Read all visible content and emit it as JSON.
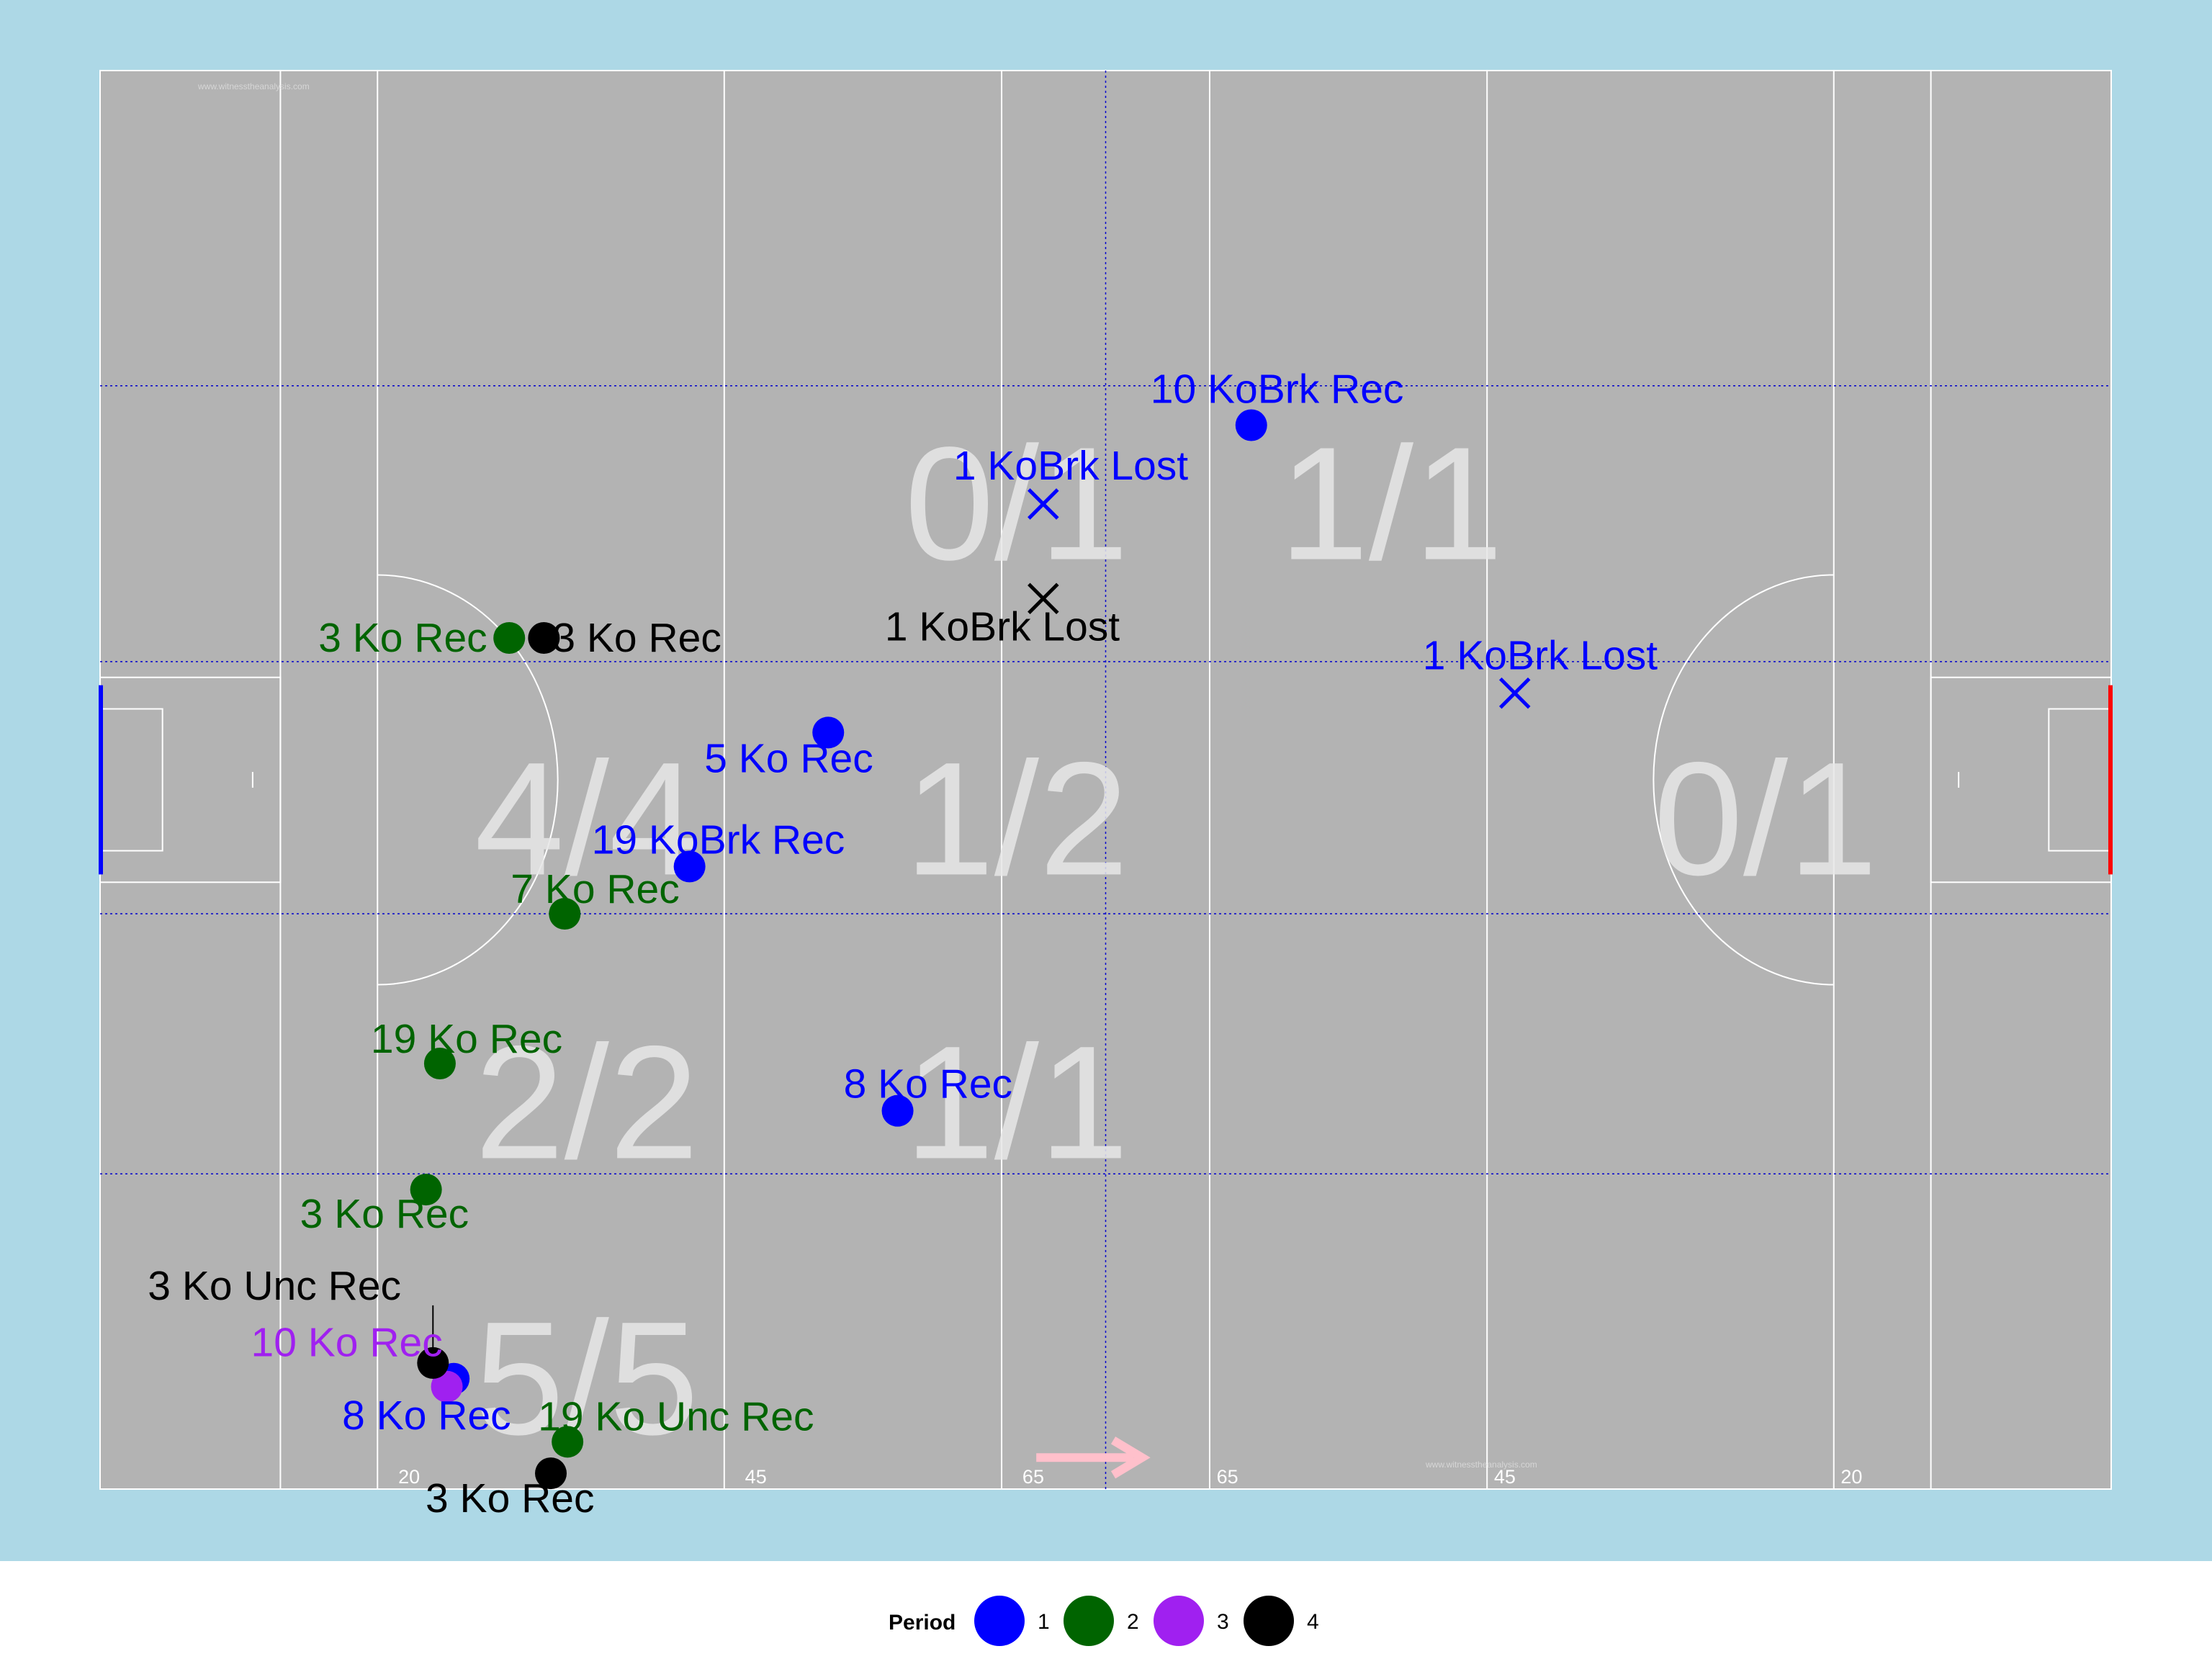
{
  "chart_data": {
    "type": "scatter",
    "title": "",
    "xlabel": "",
    "ylabel": "",
    "xlim": [
      0,
      145
    ],
    "ylim": [
      0,
      90
    ],
    "grid": false,
    "legend": {
      "title": "Period",
      "placement": "bottom",
      "entries": [
        {
          "label": "1",
          "color": "#0000ff"
        },
        {
          "label": "2",
          "color": "#006400"
        },
        {
          "label": "3",
          "color": "#a020f0"
        },
        {
          "label": "4",
          "color": "#000000"
        }
      ]
    },
    "pitch": {
      "background": "#add8e6",
      "field_color": "#b3b3b3",
      "line_color": "#ffffff",
      "grid_color": "#0000cd",
      "left_goal_color": "#0000ff",
      "right_goal_color": "#ff0000",
      "arrow_color": "#ffc0cb",
      "yard_labels": [
        {
          "x": 21.5,
          "text": "20"
        },
        {
          "x": 46.5,
          "text": "45"
        },
        {
          "x": 66.5,
          "text": "65"
        },
        {
          "x": 80.5,
          "text": "65"
        },
        {
          "x": 100.5,
          "text": "45"
        },
        {
          "x": 125.5,
          "text": "20"
        }
      ],
      "watermark": "www.witnesstheanalysis.com"
    },
    "zones": [
      {
        "text": "0/1",
        "x": 58,
        "y": 59
      },
      {
        "text": "1/1",
        "x": 85,
        "y": 59
      },
      {
        "text": "4/4",
        "x": 27,
        "y": 39
      },
      {
        "text": "1/2",
        "x": 58,
        "y": 39
      },
      {
        "text": "0/1",
        "x": 112,
        "y": 39
      },
      {
        "text": "2/2",
        "x": 27,
        "y": 21
      },
      {
        "text": "1/1",
        "x": 58,
        "y": 21
      },
      {
        "text": "5/5",
        "x": 27,
        "y": 3.5
      }
    ],
    "series": [
      {
        "name": "1",
        "color": "#0000ff",
        "points": [
          {
            "x": 83,
            "y": 67.5,
            "marker": "dot",
            "label": "10 KoBrk Rec"
          },
          {
            "x": 68,
            "y": 62.5,
            "marker": "cross",
            "label": "1 KoBrk Lost"
          },
          {
            "x": 102,
            "y": 50.5,
            "marker": "cross",
            "label": "1 KoBrk Lost"
          },
          {
            "x": 52.5,
            "y": 48,
            "marker": "dot",
            "label": "5 Ko Rec"
          },
          {
            "x": 42.5,
            "y": 39.5,
            "marker": "dot",
            "label": "19 KoBrk Rec"
          },
          {
            "x": 57.5,
            "y": 24,
            "marker": "dot",
            "label": "8 Ko Rec"
          },
          {
            "x": 25.5,
            "y": 7,
            "marker": "dot",
            "label": "8 Ko Rec"
          }
        ]
      },
      {
        "name": "2",
        "color": "#006400",
        "points": [
          {
            "x": 29.5,
            "y": 54,
            "marker": "dot",
            "label": "3 Ko Rec"
          },
          {
            "x": 33.5,
            "y": 36.5,
            "marker": "dot",
            "label": "7 Ko Rec"
          },
          {
            "x": 24.5,
            "y": 27,
            "marker": "dot",
            "label": "19 Ko Rec"
          },
          {
            "x": 23.5,
            "y": 19,
            "marker": "dot",
            "label": "3 Ko Rec"
          },
          {
            "x": 33.7,
            "y": 3,
            "marker": "dot",
            "label": "19 Ko Unc Rec"
          }
        ]
      },
      {
        "name": "3",
        "color": "#a020f0",
        "points": [
          {
            "x": 25,
            "y": 6.5,
            "marker": "dot",
            "label": "10 Ko Rec"
          }
        ]
      },
      {
        "name": "4",
        "color": "#000000",
        "points": [
          {
            "x": 68,
            "y": 56.5,
            "marker": "cross",
            "label": "1 KoBrk Lost"
          },
          {
            "x": 32,
            "y": 54,
            "marker": "dot",
            "label": "3 Ko Rec"
          },
          {
            "x": 24,
            "y": 8,
            "marker": "dot",
            "label": "3 Ko Unc Rec"
          },
          {
            "x": 32.5,
            "y": 1,
            "marker": "dot",
            "label": "3 Ko Rec"
          }
        ]
      }
    ]
  }
}
